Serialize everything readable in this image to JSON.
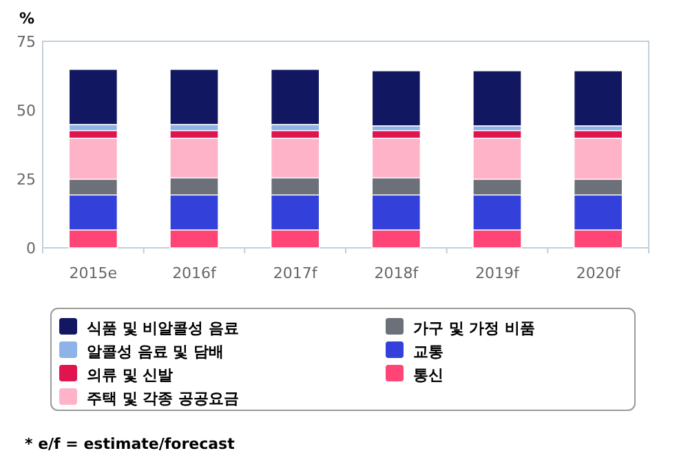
{
  "chart_data": {
    "type": "bar",
    "stacked": true,
    "ylabel": "%",
    "categories": [
      "2015e",
      "2016f",
      "2017f",
      "2018f",
      "2019f",
      "2020f"
    ],
    "ylim": [
      0,
      75
    ],
    "yticks": [
      0,
      25,
      50,
      75
    ],
    "grid": false,
    "legend": "bottom",
    "series": [
      {
        "name": "통신",
        "color": "#ff4575",
        "values": [
          6.5,
          6.5,
          6.5,
          6.5,
          6.5,
          6.5
        ]
      },
      {
        "name": "교통",
        "color": "#3340da",
        "values": [
          12.7,
          12.7,
          12.7,
          12.7,
          12.7,
          12.7
        ]
      },
      {
        "name": "가구 및 가정 비품",
        "color": "#6b7079",
        "values": [
          5.7,
          6.2,
          6.2,
          6.2,
          5.7,
          5.7
        ]
      },
      {
        "name": "주택 및 각종 공공요금",
        "color": "#feb3c8",
        "values": [
          14.9,
          14.4,
          14.4,
          14.4,
          14.9,
          14.9
        ]
      },
      {
        "name": "의류 및 신발",
        "color": "#e0144f",
        "values": [
          2.8,
          2.8,
          2.8,
          2.8,
          2.8,
          2.8
        ]
      },
      {
        "name": "알콜성 음료 및 담배",
        "color": "#8db3e8",
        "values": [
          2.2,
          2.2,
          2.2,
          1.7,
          1.7,
          1.7
        ]
      },
      {
        "name": "식품 및 비알콜성 음료",
        "color": "#111760",
        "values": [
          20.0,
          20.0,
          20.0,
          20.0,
          20.0,
          20.0
        ]
      }
    ],
    "annotations": [
      "* e/f = estimate/forecast"
    ]
  }
}
